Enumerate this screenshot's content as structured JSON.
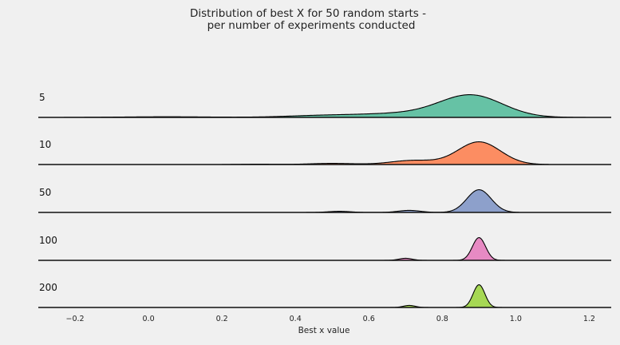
{
  "chart_data": {
    "type": "ridgeline",
    "title": [
      "Distribution of best X for 50 random starts -",
      "per number of experiments conducted"
    ],
    "xlabel": "Best x value",
    "xlim": [
      -0.3,
      1.26
    ],
    "xticks": [
      -0.2,
      0.0,
      0.2,
      0.4,
      0.6,
      0.8,
      1.0,
      1.2
    ],
    "xtick_labels": [
      "−0.2",
      "0.0",
      "0.2",
      "0.4",
      "0.6",
      "0.8",
      "1.0",
      "1.2"
    ],
    "grid": false,
    "series": [
      {
        "name": "5",
        "color": "#66c2a5",
        "range": [
          -0.23,
          1.19
        ],
        "components": [
          {
            "mu": 0.88,
            "sigma": 0.085,
            "weight": 1.0
          },
          {
            "mu": 0.7,
            "sigma": 0.12,
            "weight": 0.18
          },
          {
            "mu": 0.47,
            "sigma": 0.1,
            "weight": 0.08
          },
          {
            "mu": 0.05,
            "sigma": 0.12,
            "weight": 0.03
          }
        ]
      },
      {
        "name": "10",
        "color": "#fc8d62",
        "range": [
          0.2,
          1.09
        ],
        "components": [
          {
            "mu": 0.9,
            "sigma": 0.058,
            "weight": 1.0
          },
          {
            "mu": 0.72,
            "sigma": 0.06,
            "weight": 0.18
          },
          {
            "mu": 0.5,
            "sigma": 0.06,
            "weight": 0.05
          },
          {
            "mu": 0.3,
            "sigma": 0.05,
            "weight": 0.015
          }
        ]
      },
      {
        "name": "50",
        "color": "#8da0cb",
        "range": [
          0.42,
          1.01
        ],
        "components": [
          {
            "mu": 0.9,
            "sigma": 0.033,
            "weight": 1.0
          },
          {
            "mu": 0.71,
            "sigma": 0.03,
            "weight": 0.09
          },
          {
            "mu": 0.52,
            "sigma": 0.03,
            "weight": 0.05
          }
        ]
      },
      {
        "name": "100",
        "color": "#e78ac3",
        "range": [
          0.6,
          0.99
        ],
        "components": [
          {
            "mu": 0.9,
            "sigma": 0.018,
            "weight": 1.0
          },
          {
            "mu": 0.7,
            "sigma": 0.018,
            "weight": 0.09
          }
        ]
      },
      {
        "name": "200",
        "color": "#a6d854",
        "range": [
          0.63,
          0.98
        ],
        "components": [
          {
            "mu": 0.9,
            "sigma": 0.016,
            "weight": 1.0
          },
          {
            "mu": 0.71,
            "sigma": 0.016,
            "weight": 0.09
          }
        ]
      }
    ]
  }
}
